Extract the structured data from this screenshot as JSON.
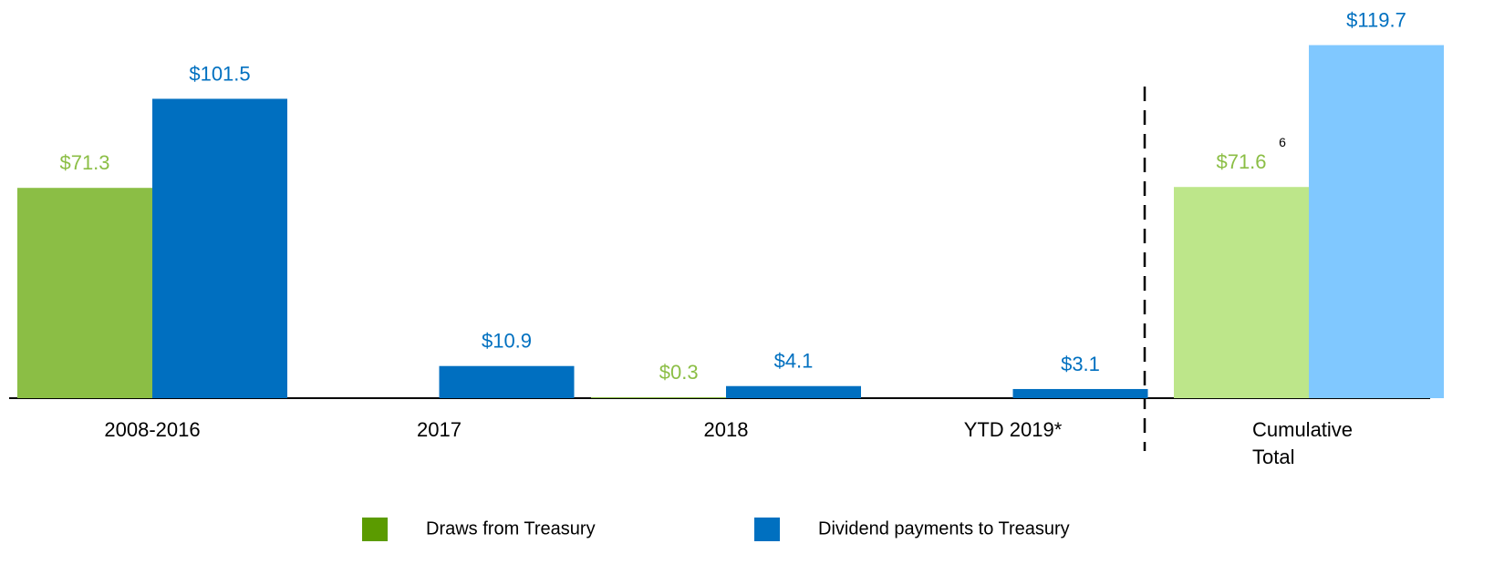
{
  "chart_data": {
    "type": "bar",
    "categories": [
      "2008-2016",
      "2017",
      "2018",
      "YTD 2019*",
      "Cumulative Total"
    ],
    "series": [
      {
        "name": "Draws from Treasury",
        "color": "#5b9b00",
        "label_color": "#8bbe45",
        "colors": [
          "#8bbe45",
          "#8bbe45",
          "#8bbe45",
          "#8bbe45",
          "#bde68a"
        ],
        "values": [
          71.3,
          null,
          0.3,
          null,
          71.6
        ],
        "value_labels": [
          "$71.3",
          null,
          "$0.3",
          null,
          "$71.6"
        ]
      },
      {
        "name": "Dividend payments to Treasury",
        "color": "#0070c0",
        "label_color": "#0070c0",
        "colors": [
          "#006fc0",
          "#006fc0",
          "#006fc0",
          "#006fc0",
          "#80c8ff"
        ],
        "values": [
          101.5,
          10.9,
          4.1,
          3.1,
          119.7
        ],
        "value_labels": [
          "$101.5",
          "$10.9",
          "$4.1",
          "$3.1",
          "$119.7"
        ]
      }
    ],
    "annotations": [
      {
        "text": "6"
      }
    ],
    "ylim": [
      0,
      135
    ],
    "grid": false
  }
}
